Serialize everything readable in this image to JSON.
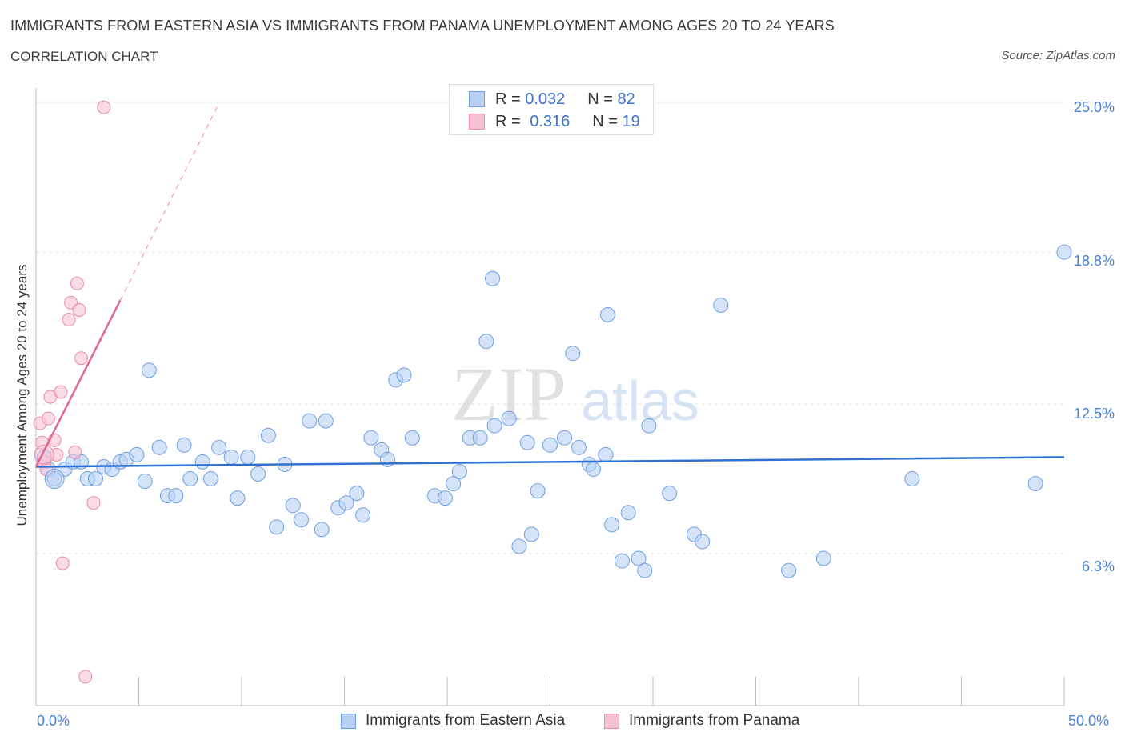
{
  "header": {
    "title": "IMMIGRANTS FROM EASTERN ASIA VS IMMIGRANTS FROM PANAMA UNEMPLOYMENT AMONG AGES 20 TO 24 YEARS",
    "subtitle": "CORRELATION CHART",
    "source": "Source: ZipAtlas.com"
  },
  "watermark": {
    "zip": "ZIP",
    "atlas": "atlas"
  },
  "legend": {
    "rows": [
      {
        "r_label": "R =",
        "r_value": "0.032",
        "n_label": "N =",
        "n_value": "82"
      },
      {
        "r_label": "R =",
        "r_value": "0.316",
        "n_label": "N =",
        "n_value": "19"
      }
    ]
  },
  "colors": {
    "blue_fill": "#b7d0f3",
    "blue_stroke": "#6e9fe0",
    "blue_line": "#2f6fd1",
    "pink_fill": "#f7c3d3",
    "pink_stroke": "#e88aa8",
    "pink_line": "#e0669a",
    "grid": "#e2e2e2",
    "axis": "#bbbbbb",
    "tick_text": "#4a7fd0"
  },
  "chart_data": {
    "type": "scatter",
    "title": "IMMIGRANTS FROM EASTERN ASIA VS IMMIGRANTS FROM PANAMA UNEMPLOYMENT AMONG AGES 20 TO 24 YEARS",
    "xlabel": "",
    "ylabel": "Unemployment Among Ages 20 to 24 years",
    "xlim": [
      0,
      50
    ],
    "ylim": [
      0,
      25.6
    ],
    "x_tick_labels": [
      "0.0%",
      "50.0%"
    ],
    "y_ticks": [
      6.3,
      12.5,
      18.8,
      25.0
    ],
    "y_tick_labels": [
      "6.3%",
      "12.5%",
      "18.8%",
      "25.0%"
    ],
    "grid": true,
    "legend_position": "bottom",
    "series": [
      {
        "name": "Immigrants from Eastern Asia",
        "R": 0.032,
        "N": 82,
        "trend": {
          "x": [
            0,
            50
          ],
          "y": [
            9.9,
            10.3
          ]
        },
        "points": [
          [
            0.4,
            10.3
          ],
          [
            0.6,
            9.8
          ],
          [
            0.9,
            9.4
          ],
          [
            1.4,
            9.8
          ],
          [
            1.8,
            10.1
          ],
          [
            2.2,
            10.1
          ],
          [
            2.5,
            9.4
          ],
          [
            2.9,
            9.4
          ],
          [
            3.3,
            9.9
          ],
          [
            3.7,
            9.8
          ],
          [
            4.1,
            10.1
          ],
          [
            4.4,
            10.2
          ],
          [
            4.9,
            10.4
          ],
          [
            5.3,
            9.3
          ],
          [
            5.5,
            13.9
          ],
          [
            6.0,
            10.7
          ],
          [
            6.4,
            8.7
          ],
          [
            6.8,
            8.7
          ],
          [
            7.2,
            10.8
          ],
          [
            7.5,
            9.4
          ],
          [
            8.1,
            10.1
          ],
          [
            8.5,
            9.4
          ],
          [
            8.9,
            10.7
          ],
          [
            9.5,
            10.3
          ],
          [
            9.8,
            8.6
          ],
          [
            10.3,
            10.3
          ],
          [
            10.8,
            9.6
          ],
          [
            11.3,
            11.2
          ],
          [
            11.7,
            7.4
          ],
          [
            12.1,
            10.0
          ],
          [
            12.5,
            8.3
          ],
          [
            12.9,
            7.7
          ],
          [
            13.3,
            11.8
          ],
          [
            13.9,
            7.3
          ],
          [
            14.1,
            11.8
          ],
          [
            14.7,
            8.2
          ],
          [
            15.1,
            8.4
          ],
          [
            15.6,
            8.8
          ],
          [
            15.9,
            7.9
          ],
          [
            16.3,
            11.1
          ],
          [
            16.8,
            10.6
          ],
          [
            17.1,
            10.2
          ],
          [
            17.5,
            13.5
          ],
          [
            17.9,
            13.7
          ],
          [
            18.3,
            11.1
          ],
          [
            19.4,
            8.7
          ],
          [
            19.9,
            8.6
          ],
          [
            20.3,
            9.2
          ],
          [
            20.6,
            9.7
          ],
          [
            21.1,
            11.1
          ],
          [
            21.6,
            11.1
          ],
          [
            22.3,
            11.6
          ],
          [
            23.0,
            11.9
          ],
          [
            23.5,
            6.6
          ],
          [
            23.9,
            10.9
          ],
          [
            24.1,
            7.1
          ],
          [
            24.4,
            8.9
          ],
          [
            25.0,
            10.8
          ],
          [
            25.7,
            11.1
          ],
          [
            26.1,
            14.6
          ],
          [
            26.4,
            10.7
          ],
          [
            26.9,
            10.0
          ],
          [
            27.1,
            9.8
          ],
          [
            27.7,
            10.4
          ],
          [
            28.0,
            7.5
          ],
          [
            28.5,
            6.0
          ],
          [
            28.8,
            8.0
          ],
          [
            29.3,
            6.1
          ],
          [
            29.6,
            5.6
          ],
          [
            29.8,
            11.6
          ],
          [
            30.8,
            8.8
          ],
          [
            32.0,
            7.1
          ],
          [
            32.4,
            6.8
          ],
          [
            36.6,
            5.6
          ],
          [
            38.3,
            6.1
          ],
          [
            42.6,
            9.4
          ],
          [
            48.6,
            9.2
          ],
          [
            50.0,
            18.8
          ],
          [
            22.2,
            17.7
          ],
          [
            33.3,
            16.6
          ],
          [
            27.8,
            16.2
          ],
          [
            21.9,
            15.1
          ]
        ]
      },
      {
        "name": "Immigrants from Panama",
        "R": 0.316,
        "N": 19,
        "trend": {
          "x": [
            0,
            4.1
          ],
          "y": [
            9.9,
            16.8
          ]
        },
        "trend_extended": {
          "x": [
            4.1,
            8.8
          ],
          "y": [
            16.8,
            24.8
          ]
        },
        "points": [
          [
            0.2,
            11.7
          ],
          [
            0.3,
            10.9
          ],
          [
            0.4,
            10.1
          ],
          [
            0.5,
            9.8
          ],
          [
            0.6,
            11.9
          ],
          [
            0.7,
            12.8
          ],
          [
            0.9,
            11.0
          ],
          [
            1.0,
            10.4
          ],
          [
            1.2,
            13.0
          ],
          [
            1.3,
            5.9
          ],
          [
            1.6,
            16.0
          ],
          [
            1.7,
            16.7
          ],
          [
            1.9,
            10.5
          ],
          [
            2.0,
            17.5
          ],
          [
            2.1,
            16.4
          ],
          [
            2.2,
            14.4
          ],
          [
            2.4,
            1.2
          ],
          [
            2.8,
            8.4
          ],
          [
            3.3,
            24.8
          ]
        ]
      }
    ]
  }
}
